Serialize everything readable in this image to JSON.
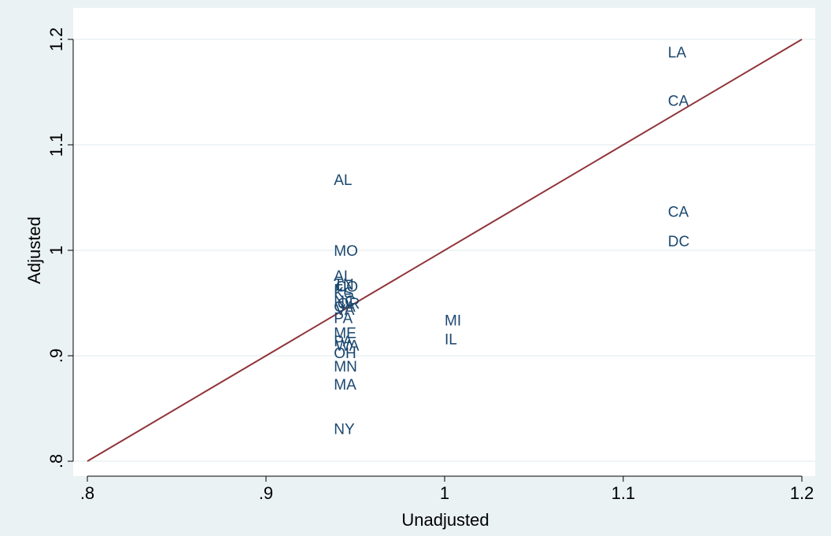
{
  "chart_data": {
    "type": "scatter",
    "title": "",
    "xlabel": "Unadjusted",
    "ylabel": "Adjusted",
    "xlim": [
      0.8,
      1.2
    ],
    "ylim": [
      0.8,
      1.2
    ],
    "grid": "horizontal",
    "legend": "none",
    "x_ticks": [
      {
        "value": 0.8,
        "label": ".8"
      },
      {
        "value": 0.9,
        "label": ".9"
      },
      {
        "value": 1.0,
        "label": "1"
      },
      {
        "value": 1.1,
        "label": "1.1"
      },
      {
        "value": 1.2,
        "label": "1.2"
      }
    ],
    "y_ticks": [
      {
        "value": 0.8,
        "label": ".8"
      },
      {
        "value": 0.9,
        "label": ".9"
      },
      {
        "value": 1.0,
        "label": "1"
      },
      {
        "value": 1.1,
        "label": "1.1"
      },
      {
        "value": 1.2,
        "label": "1.2"
      }
    ],
    "reference_line": {
      "x": [
        0.8,
        1.2
      ],
      "y": [
        0.8,
        1.2
      ]
    },
    "points": [
      {
        "label": "LA",
        "x": 1.125,
        "y": 1.187
      },
      {
        "label": "CA",
        "x": 1.125,
        "y": 1.141
      },
      {
        "label": "CA",
        "x": 1.125,
        "y": 1.036
      },
      {
        "label": "DC",
        "x": 1.125,
        "y": 1.008
      },
      {
        "label": "AL",
        "x": 0.938,
        "y": 1.066
      },
      {
        "label": "MO",
        "x": 0.938,
        "y": 0.999
      },
      {
        "label": "AL",
        "x": 0.938,
        "y": 0.975
      },
      {
        "label": "TN",
        "x": 0.938,
        "y": 0.967
      },
      {
        "label": "CO",
        "x": 0.939,
        "y": 0.965
      },
      {
        "label": "FL",
        "x": 0.938,
        "y": 0.962
      },
      {
        "label": "KS",
        "x": 0.938,
        "y": 0.959
      },
      {
        "label": "NC",
        "x": 0.938,
        "y": 0.951
      },
      {
        "label": "OR",
        "x": 0.94,
        "y": 0.949
      },
      {
        "label": "GA",
        "x": 0.938,
        "y": 0.946
      },
      {
        "label": "VA",
        "x": 0.939,
        "y": 0.943
      },
      {
        "label": "PA",
        "x": 0.938,
        "y": 0.935
      },
      {
        "label": "ME",
        "x": 0.938,
        "y": 0.921
      },
      {
        "label": "PA",
        "x": 0.938,
        "y": 0.913
      },
      {
        "label": "WA",
        "x": 0.939,
        "y": 0.909
      },
      {
        "label": "OH",
        "x": 0.938,
        "y": 0.902
      },
      {
        "label": "MN",
        "x": 0.938,
        "y": 0.889
      },
      {
        "label": "MA",
        "x": 0.938,
        "y": 0.872
      },
      {
        "label": "NY",
        "x": 0.938,
        "y": 0.83
      },
      {
        "label": "MI",
        "x": 1.0,
        "y": 0.933
      },
      {
        "label": "IL",
        "x": 1.0,
        "y": 0.915
      }
    ]
  },
  "colors": {
    "background": "#eaf2f3",
    "plot_background": "#ffffff",
    "grid": "#eaf2f3",
    "reference_line": "#90353b",
    "marker_label": "#1a476f",
    "axis": "#000000"
  }
}
